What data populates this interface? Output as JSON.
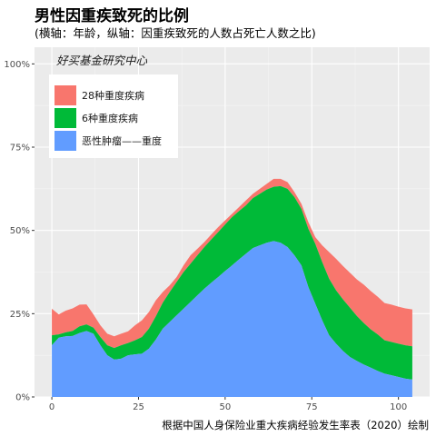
{
  "chart_data": {
    "type": "area",
    "title": "男性因重疾致死的比例",
    "subtitle": "(横轴：年龄，纵轴：因重疾致死的人数占死亡人数之比)",
    "caption": "根据中国人身保险业重大疾病经验发生率表（2020）绘制",
    "watermark": "好买基金研究中心",
    "stacked": true,
    "grid": true,
    "legend_position": "top-left",
    "xlim": [
      -5,
      109
    ],
    "ylim": [
      0,
      1.05
    ],
    "x_ticks": [
      0,
      25,
      50,
      75,
      100
    ],
    "x_tick_labels": [
      "0",
      "25",
      "50",
      "75",
      "100"
    ],
    "y_ticks": [
      0,
      0.25,
      0.5,
      0.75,
      1.0
    ],
    "y_tick_labels": [
      "0%",
      "25%",
      "50%",
      "75%",
      "100%"
    ],
    "x": [
      0,
      2,
      4,
      6,
      8,
      10,
      12,
      14,
      16,
      18,
      20,
      22,
      24,
      26,
      28,
      30,
      32,
      34,
      36,
      38,
      40,
      42,
      44,
      46,
      48,
      50,
      52,
      54,
      56,
      58,
      60,
      62,
      64,
      66,
      68,
      70,
      72,
      74,
      76,
      78,
      80,
      82,
      84,
      86,
      88,
      90,
      92,
      94,
      96,
      98,
      100,
      102,
      104
    ],
    "series": [
      {
        "name": "恶性肿瘤——重度",
        "color": "#619cff",
        "values": [
          0.155,
          0.178,
          0.182,
          0.183,
          0.192,
          0.198,
          0.19,
          0.155,
          0.125,
          0.112,
          0.115,
          0.125,
          0.128,
          0.13,
          0.145,
          0.172,
          0.205,
          0.225,
          0.245,
          0.265,
          0.285,
          0.305,
          0.325,
          0.343,
          0.36,
          0.378,
          0.395,
          0.413,
          0.43,
          0.447,
          0.455,
          0.463,
          0.468,
          0.463,
          0.45,
          0.425,
          0.395,
          0.33,
          0.28,
          0.23,
          0.185,
          0.16,
          0.138,
          0.12,
          0.108,
          0.097,
          0.088,
          0.078,
          0.07,
          0.065,
          0.06,
          0.055,
          0.052
        ]
      },
      {
        "name": "6种重度疾病",
        "color": "#00ba38",
        "values": [
          0.03,
          0.01,
          0.012,
          0.015,
          0.02,
          0.02,
          0.018,
          0.025,
          0.03,
          0.035,
          0.04,
          0.037,
          0.042,
          0.05,
          0.06,
          0.07,
          0.078,
          0.09,
          0.1,
          0.11,
          0.115,
          0.12,
          0.125,
          0.13,
          0.135,
          0.14,
          0.145,
          0.145,
          0.145,
          0.15,
          0.155,
          0.16,
          0.163,
          0.17,
          0.175,
          0.175,
          0.17,
          0.175,
          0.18,
          0.175,
          0.17,
          0.16,
          0.155,
          0.148,
          0.135,
          0.125,
          0.115,
          0.11,
          0.1,
          0.1,
          0.1,
          0.1,
          0.1
        ]
      },
      {
        "name": "28种重度疾病",
        "color": "#f8766d",
        "values": [
          0.08,
          0.06,
          0.065,
          0.068,
          0.065,
          0.06,
          0.04,
          0.035,
          0.035,
          0.035,
          0.035,
          0.035,
          0.045,
          0.05,
          0.05,
          0.048,
          0.032,
          0.02,
          0.015,
          0.02,
          0.025,
          0.02,
          0.015,
          0.015,
          0.015,
          0.012,
          0.01,
          0.012,
          0.015,
          0.013,
          0.015,
          0.017,
          0.024,
          0.022,
          0.02,
          0.015,
          0.015,
          0.02,
          0.02,
          0.05,
          0.08,
          0.095,
          0.1,
          0.105,
          0.11,
          0.115,
          0.115,
          0.113,
          0.112,
          0.112,
          0.111,
          0.111,
          0.111
        ]
      }
    ],
    "legend": [
      "28种重度疾病",
      "6种重度疾病",
      "恶性肿瘤——重度"
    ]
  }
}
